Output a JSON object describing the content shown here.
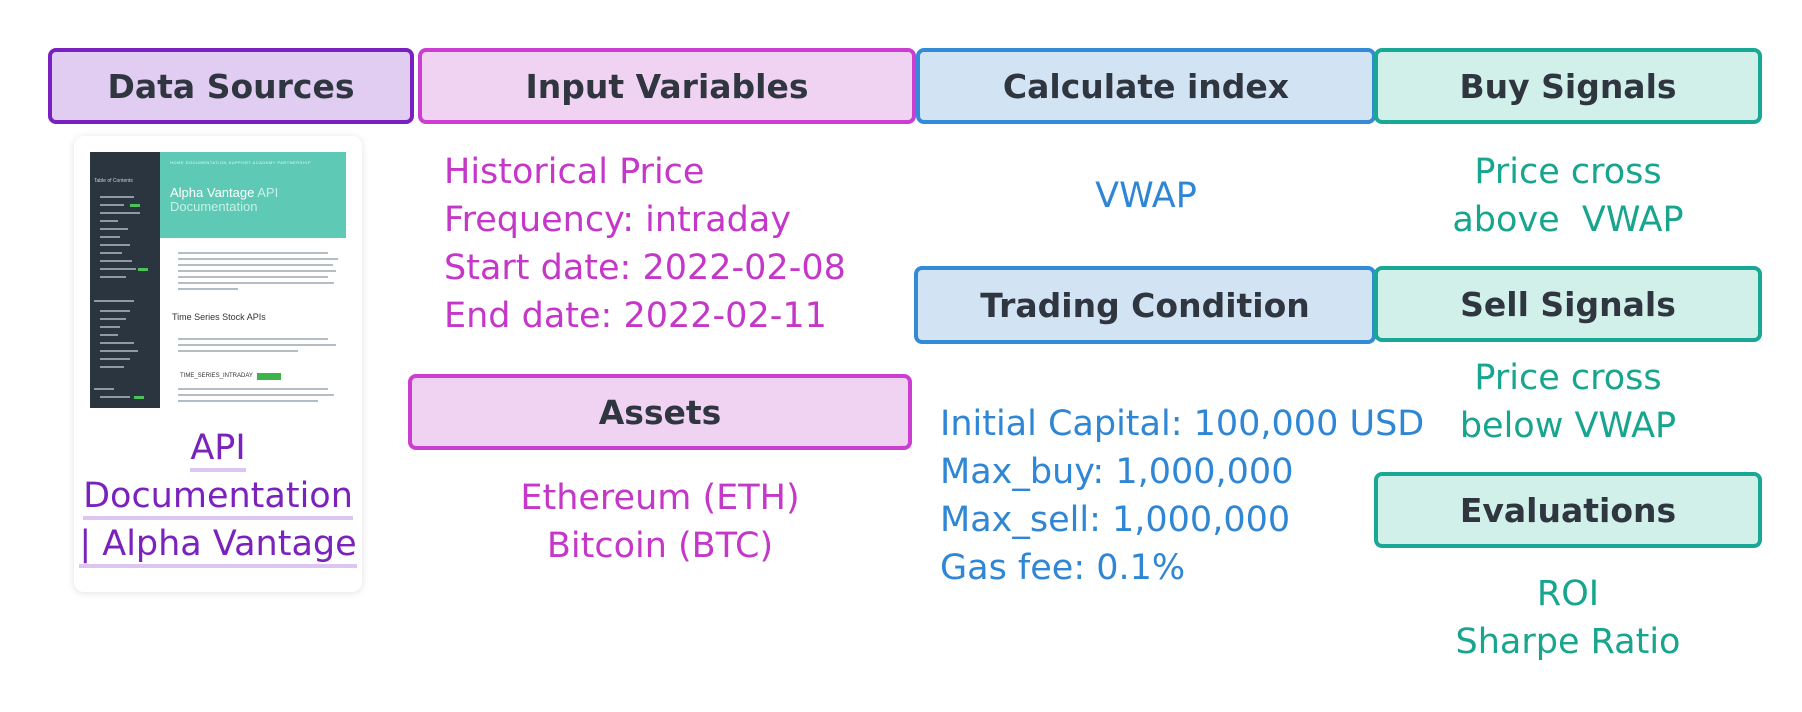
{
  "columns": {
    "data_sources": {
      "header": "Data Sources"
    },
    "input_variables": {
      "header": "Input Variables",
      "lines": [
        "Historical Price",
        "Frequency: intraday",
        "Start date: 2022-02-08",
        "End date: 2022-02-11"
      ]
    },
    "assets": {
      "header": "Assets",
      "lines": [
        "Ethereum (ETH)",
        "Bitcoin (BTC)"
      ]
    },
    "calculate_index": {
      "header": "Calculate index",
      "value": "VWAP"
    },
    "trading_condition": {
      "header": "Trading Condition",
      "lines": [
        "Initial Capital: 100,000 USD",
        "Max_buy: 1,000,000",
        "Max_sell: 1,000,000",
        "Gas fee: 0.1%"
      ]
    },
    "buy_signals": {
      "header": "Buy Signals",
      "lines": [
        "Price cross",
        "above  VWAP"
      ]
    },
    "sell_signals": {
      "header": "Sell Signals",
      "lines": [
        "Price cross",
        "below VWAP"
      ]
    },
    "evaluations": {
      "header": "Evaluations",
      "lines": [
        "ROI",
        "Sharpe Ratio"
      ]
    }
  },
  "api_card": {
    "link_lines": [
      "API",
      "Documentation",
      "| Alpha Vantage"
    ],
    "thumbnail": {
      "toc_label": "Table of Contents",
      "nav": "HOME   DOCUMENTATION   SUPPORT   ACADEMY   PARTNERSHIP",
      "title_main": "Alpha Vantage",
      "title_light": "API Documentation",
      "section": "Time Series Stock APIs",
      "subsection": "TIME_SERIES_INTRADAY",
      "badge": "Trending"
    }
  },
  "colors": {
    "purple": "#7a1fc0",
    "magenta": "#c437c8",
    "blue": "#2f86d5",
    "teal": "#17a58e",
    "header_text": "#2f3640"
  }
}
